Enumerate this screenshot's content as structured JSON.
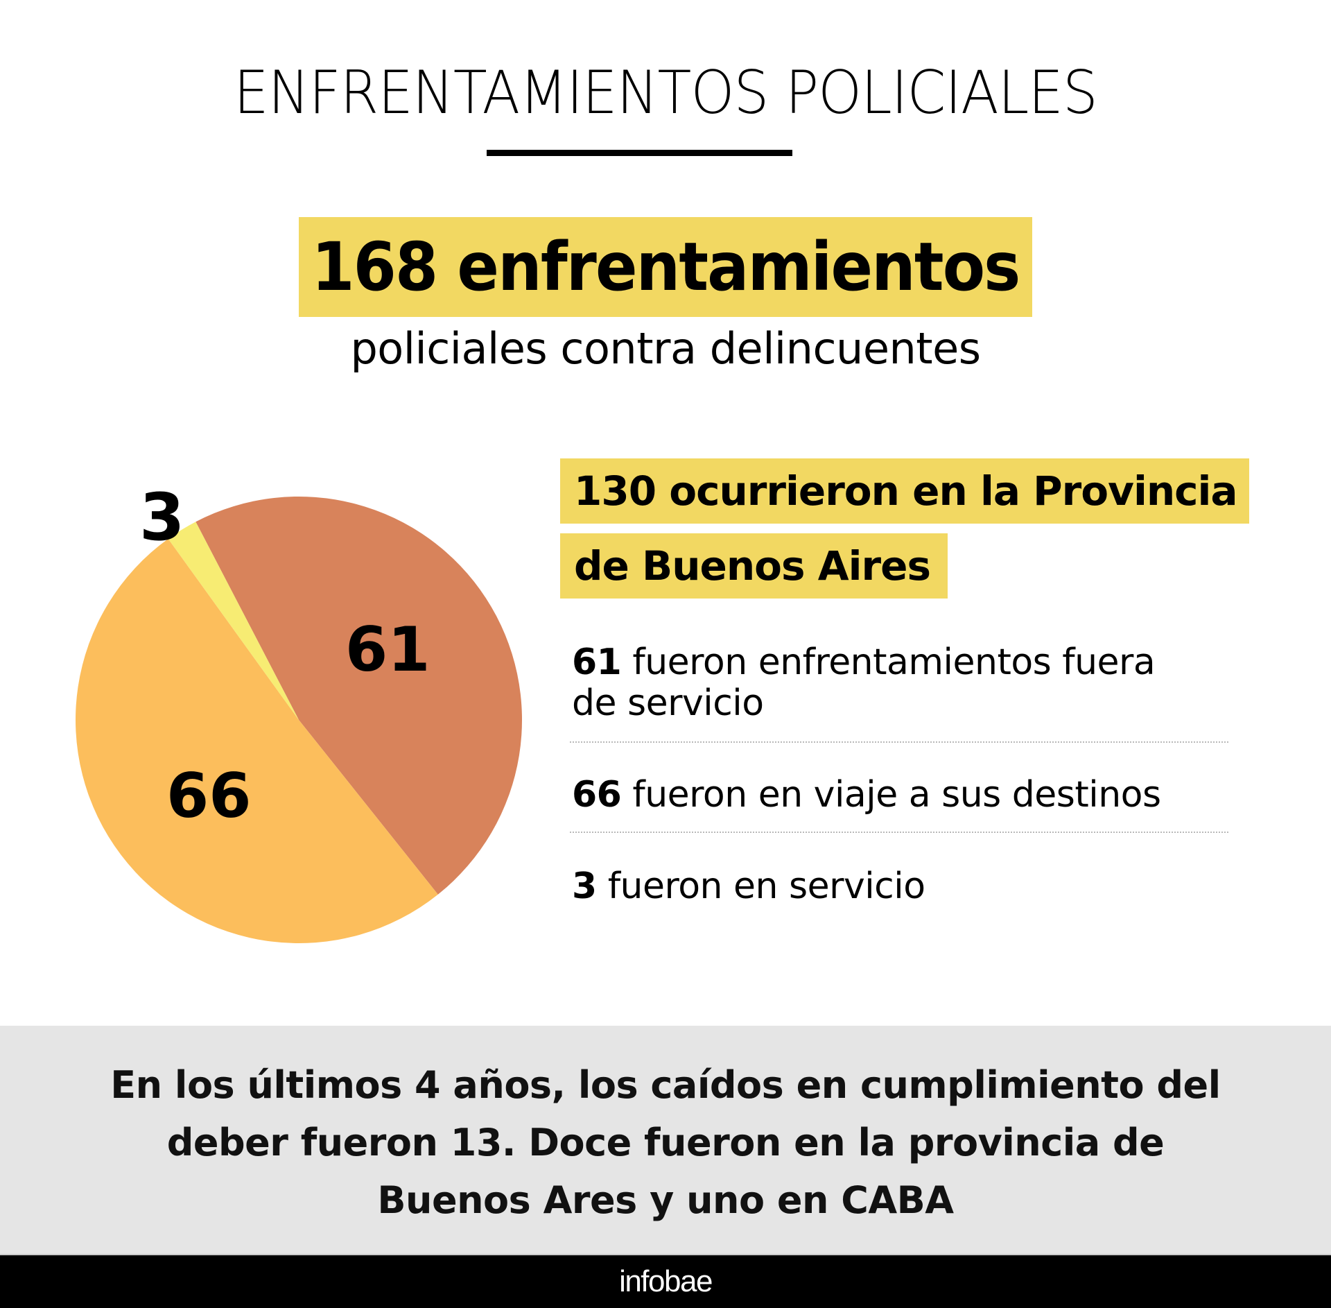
{
  "header": {
    "title": "ENFRENTAMIENTOS POLICIALES"
  },
  "headline": {
    "value": "168 enfrentamientos",
    "subtitle": "policiales contra delincuentes"
  },
  "province": {
    "line1": "130 ocurrieron en la Provincia",
    "line2": "de Buenos Aires"
  },
  "items": [
    {
      "number": "61",
      "text": " fueron enfrentamientos fuera de servicio"
    },
    {
      "number": "66",
      "text": " fueron en viaje a sus destinos"
    },
    {
      "number": "3",
      "text": " fueron en servicio"
    }
  ],
  "note": {
    "lines": [
      "En los últimos 4 años, los caídos en cumplimiento del",
      "deber fueron 13. Doce fueron en la provincia de",
      "Buenos Ares y uno en CABA"
    ]
  },
  "footer": {
    "logo": "infobae"
  },
  "colors": {
    "highlight": "#f2d862",
    "slice_fuera_de_servicio": "#d8835b",
    "slice_en_viaje": "#fcbe5c",
    "slice_en_servicio": "#f7ec73",
    "note_background": "#e5e5e5"
  },
  "chart_data": {
    "type": "pie",
    "title": "130 ocurrieron en la Provincia de Buenos Aires",
    "total": 130,
    "slices": [
      {
        "label": "fueron enfrentamientos fuera de servicio",
        "value": 61,
        "display": "61",
        "color": "#d8835b"
      },
      {
        "label": "fueron en viaje a sus destinos",
        "value": 66,
        "display": "66",
        "color": "#fcbe5c"
      },
      {
        "label": "fueron en servicio",
        "value": 3,
        "display": "3",
        "color": "#f7ec73"
      }
    ],
    "start_angle_deg": -27.5,
    "direction": "clockwise",
    "legend": "right"
  }
}
